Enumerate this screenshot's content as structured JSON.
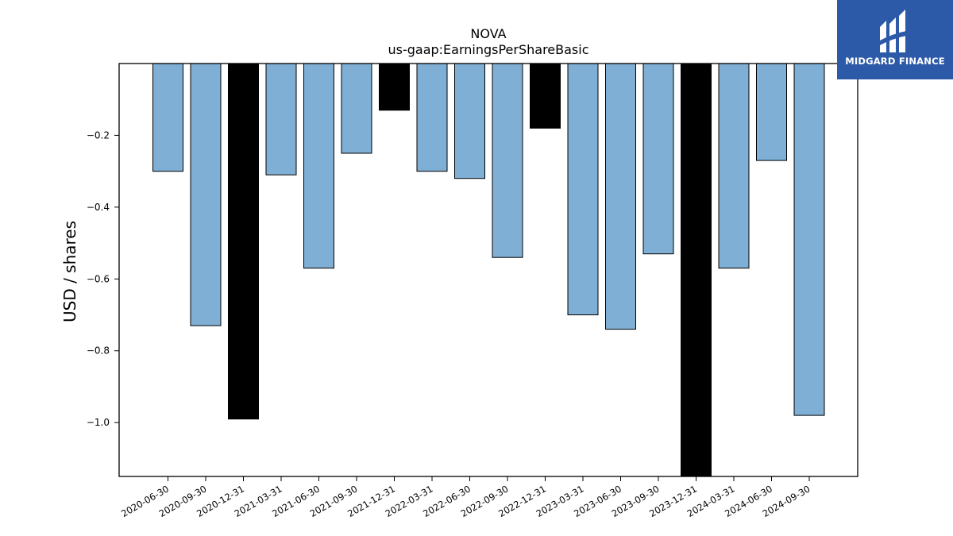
{
  "chart_data": {
    "type": "bar",
    "title": "NOVA",
    "subtitle": "us-gaap:EarningsPerShareBasic",
    "xlabel": "",
    "ylabel": "USD / shares",
    "ylim": [
      -1.15,
      0.0
    ],
    "yticks": [
      -0.2,
      -0.4,
      -0.6,
      -0.8,
      -1.0
    ],
    "ytick_labels": [
      "−0.2",
      "−0.4",
      "−0.6",
      "−0.8",
      "−1.0"
    ],
    "grid": false,
    "categories": [
      "2020-06-30",
      "2020-09-30",
      "2020-12-31",
      "2021-03-31",
      "2021-06-30",
      "2021-09-30",
      "2021-12-31",
      "2022-03-31",
      "2022-06-30",
      "2022-09-30",
      "2022-12-31",
      "2023-03-31",
      "2023-06-30",
      "2023-09-30",
      "2023-12-31",
      "2024-03-31",
      "2024-06-30",
      "2024-09-30"
    ],
    "values": [
      -0.3,
      -0.73,
      -0.99,
      -0.31,
      -0.57,
      -0.25,
      -0.13,
      -0.3,
      -0.32,
      -0.54,
      -0.18,
      -0.7,
      -0.74,
      -0.53,
      -1.16,
      -0.57,
      -0.27,
      -0.98
    ],
    "bar_colors": [
      "#7fafd4",
      "#7fafd4",
      "#000000",
      "#7fafd4",
      "#7fafd4",
      "#7fafd4",
      "#000000",
      "#7fafd4",
      "#7fafd4",
      "#7fafd4",
      "#000000",
      "#7fafd4",
      "#7fafd4",
      "#7fafd4",
      "#000000",
      "#7fafd4",
      "#7fafd4",
      "#7fafd4"
    ]
  },
  "logo": {
    "text": "MIDGARD FINANCE",
    "background": "#2d5aa8"
  }
}
